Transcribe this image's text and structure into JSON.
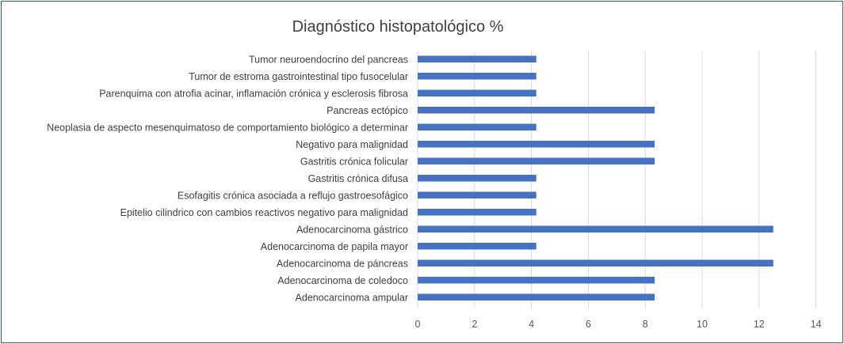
{
  "chart_data": {
    "type": "bar",
    "orientation": "horizontal",
    "title": "Diagnóstico histopatológico %",
    "xlabel": "",
    "ylabel": "",
    "xlim": [
      0,
      14
    ],
    "xticks": [
      "0",
      "2",
      "4",
      "6",
      "8",
      "10",
      "12",
      "14"
    ],
    "grid": true,
    "legend": "none",
    "bar_color": "#4472c4",
    "categories": [
      "Tumor neuroendocrino del pancreas",
      "Tumor de estroma gastrointestinal tipo fusocelular",
      "Parenquima con atrofia acinar, inflamación crónica y esclerosis fibrosa",
      "Pancreas ectópico",
      "Neoplasia de aspecto mesenquimatoso de comportamiento biológico a determinar",
      "Negativo para malignidad",
      "Gastritis crónica folicular",
      "Gastritis crónica difusa",
      "Esofagitis crónica asociada a reflujo gastroesofágico",
      "Epitelio cilindrico con cambios reactivos negativo para malignidad",
      "Adenocarcinoma gástrico",
      "Adenocarcinoma de papila mayor",
      "Adenocarcinoma de páncreas",
      "Adenocarcinoma de coledoco",
      "Adenocarcinoma ampular"
    ],
    "values": [
      4.17,
      4.17,
      4.17,
      8.33,
      4.17,
      8.33,
      8.33,
      4.17,
      4.17,
      4.17,
      12.5,
      4.17,
      12.5,
      8.33,
      8.33
    ]
  }
}
